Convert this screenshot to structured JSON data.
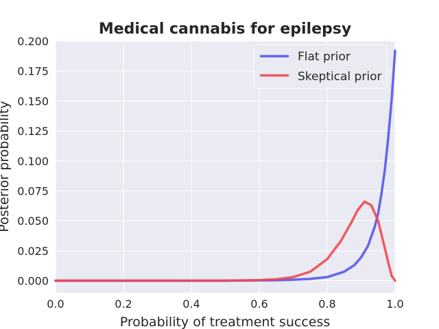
{
  "chart_data": {
    "type": "line",
    "title": "Medical cannabis for epilepsy",
    "xlabel": "Probability of treatment success",
    "ylabel": "Posterior probability",
    "xlim": [
      0.0,
      1.0
    ],
    "ylim": [
      -0.01,
      0.2
    ],
    "xticks": [
      "0.0",
      "0.2",
      "0.4",
      "0.6",
      "0.8",
      "1.0"
    ],
    "yticks": [
      "0.000",
      "0.025",
      "0.050",
      "0.075",
      "0.100",
      "0.125",
      "0.150",
      "0.175",
      "0.200"
    ],
    "grid": true,
    "legend_position": "top-right",
    "colors": {
      "background": "#eaeaf2",
      "grid": "#ffffff",
      "flat": "#5555ee",
      "skeptical": "#ee4a50"
    },
    "series": [
      {
        "name": "Flat prior",
        "color": "#5555ee",
        "x": [
          0.0,
          0.5,
          0.6,
          0.65,
          0.7,
          0.75,
          0.8,
          0.85,
          0.88,
          0.9,
          0.92,
          0.94,
          0.95,
          0.96,
          0.97,
          0.98,
          0.99,
          1.0
        ],
        "y": [
          0.0,
          0.0,
          0.0002,
          0.0004,
          0.0008,
          0.0015,
          0.003,
          0.0075,
          0.013,
          0.0195,
          0.029,
          0.045,
          0.056,
          0.073,
          0.093,
          0.12,
          0.152,
          0.192
        ]
      },
      {
        "name": "Skeptical prior",
        "color": "#ee4a50",
        "x": [
          0.0,
          0.5,
          0.6,
          0.65,
          0.7,
          0.75,
          0.8,
          0.84,
          0.87,
          0.89,
          0.91,
          0.93,
          0.95,
          0.97,
          0.98,
          0.99,
          1.0
        ],
        "y": [
          0.0,
          0.0,
          0.0005,
          0.0012,
          0.003,
          0.0075,
          0.018,
          0.033,
          0.048,
          0.059,
          0.066,
          0.063,
          0.05,
          0.027,
          0.015,
          0.004,
          0.0
        ]
      }
    ]
  }
}
